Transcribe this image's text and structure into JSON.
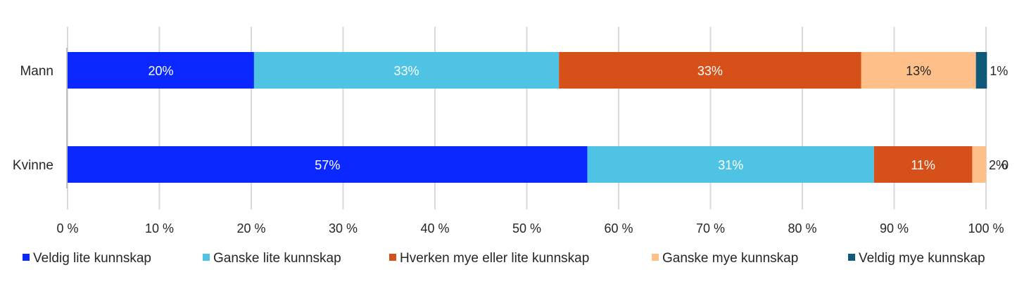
{
  "chart_data": {
    "type": "bar",
    "orientation": "horizontal",
    "stacked": true,
    "categories": [
      "Mann",
      "Kvinne"
    ],
    "series": [
      {
        "name": "Veldig lite kunnskap",
        "color": "#0a28ff",
        "label_color": "#ffffff",
        "values": [
          20.3,
          56.6
        ],
        "labels": [
          "20%",
          "57%"
        ]
      },
      {
        "name": "Ganske lite kunnskap",
        "color": "#4fc3e3",
        "label_color": "#ffffff",
        "values": [
          33.2,
          31.2
        ],
        "labels": [
          "33%",
          "31%"
        ]
      },
      {
        "name": "Hverken mye eller lite kunnskap",
        "color": "#d6501a",
        "label_color": "#ffffff",
        "values": [
          32.9,
          10.7
        ],
        "labels": [
          "33%",
          "11%"
        ]
      },
      {
        "name": "Ganske mye kunnskap",
        "color": "#fec088",
        "label_color": "#262626",
        "values": [
          12.5,
          1.5
        ],
        "labels": [
          "13%",
          "2%"
        ]
      },
      {
        "name": "Veldig mye kunnskap",
        "color": "#0e5a78",
        "label_color": "#262626",
        "values": [
          1.2,
          0
        ],
        "labels": [
          "1%",
          "0"
        ]
      }
    ],
    "xlim": [
      0,
      100
    ],
    "xticks": [
      "0 %",
      "10 %",
      "20 %",
      "30 %",
      "40 %",
      "50 %",
      "60 %",
      "70 %",
      "80 %",
      "90 %",
      "100 %"
    ],
    "grid": true,
    "legend_position": "bottom"
  }
}
